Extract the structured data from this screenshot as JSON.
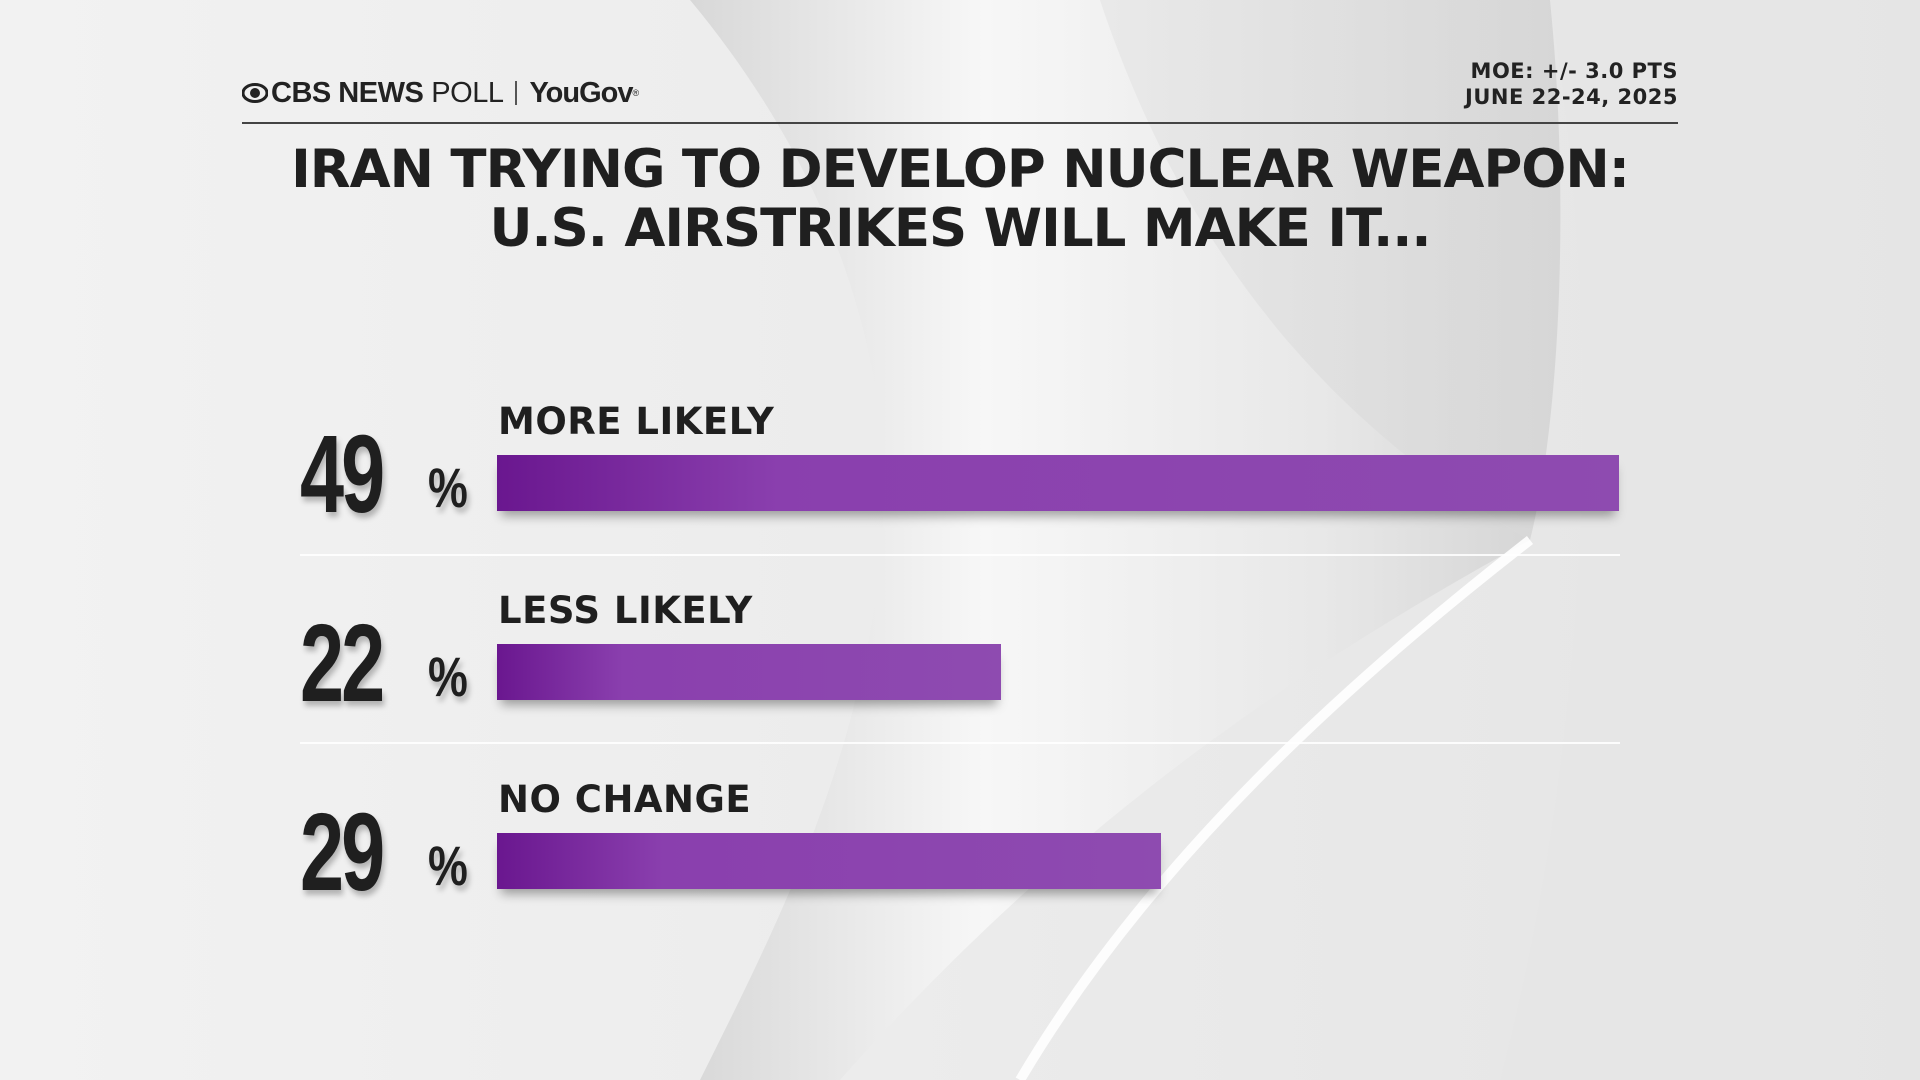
{
  "header": {
    "brand_cbs": "CBS NEWS",
    "brand_poll": "POLL",
    "brand_yougov": "YouGov",
    "moe": "MOE: +/- 3.0 PTS",
    "dates": "JUNE 22-24, 2025",
    "logo_icon": "cbs-eye-icon"
  },
  "colors": {
    "bar_start": "#6a178f",
    "bar_end": "#8e4bb0",
    "text": "#1f1f1f"
  },
  "chart_data": {
    "type": "bar",
    "orientation": "horizontal",
    "title": "IRAN TRYING TO DEVELOP NUCLEAR WEAPON: U.S. AIRSTRIKES WILL MAKE IT...",
    "title_lines": [
      "IRAN TRYING TO DEVELOP NUCLEAR WEAPON:",
      "U.S. AIRSTRIKES WILL MAKE IT..."
    ],
    "categories": [
      "MORE LIKELY",
      "LESS LIKELY",
      "NO CHANGE"
    ],
    "values": [
      49,
      22,
      29
    ],
    "value_labels": [
      "49",
      "22",
      "29"
    ],
    "value_suffix": "%",
    "xlim": [
      0,
      49
    ],
    "grid": false,
    "legend": "none"
  }
}
